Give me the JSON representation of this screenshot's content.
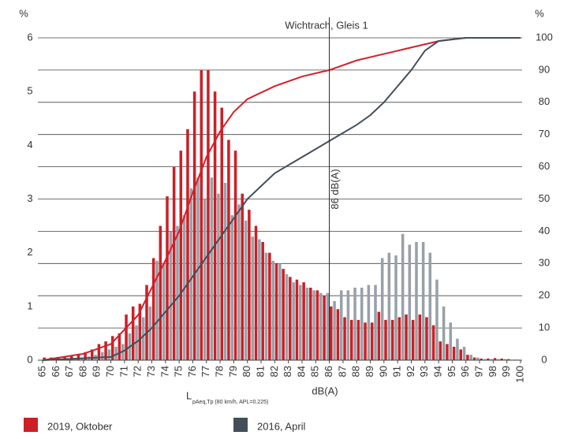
{
  "chart_data": {
    "type": "histogram",
    "title": "Wichtrach, Gleis 1",
    "y_label": "%",
    "y2_label": "%",
    "x_label": "dB(A)",
    "x_sub_label": "L",
    "x_sub_label_sub": "pAeq,Tp (80 km/h, APL=0.225)",
    "annotation": {
      "x": 86,
      "label": "86 dB(A)"
    },
    "bins": [
      65,
      65.5,
      66,
      66.5,
      67,
      67.5,
      68,
      68.5,
      69,
      69.5,
      70,
      70.5,
      71,
      71.5,
      72,
      72.5,
      73,
      73.5,
      74,
      74.5,
      75,
      75.5,
      76,
      76.5,
      77,
      77.5,
      78,
      78.5,
      79,
      79.5,
      80,
      80.5,
      81,
      81.5,
      82,
      82.5,
      83,
      83.5,
      84,
      84.5,
      85,
      85.5,
      86,
      86.5,
      87,
      87.5,
      88,
      88.5,
      89,
      89.5,
      90,
      90.5,
      91,
      91.5,
      92,
      92.5,
      93,
      93.5,
      94,
      94.5,
      95,
      95.5,
      96,
      96.5,
      97,
      97.5,
      98,
      98.5,
      99,
      99.5,
      100
    ],
    "xlim": [
      65,
      100
    ],
    "xticks": [
      65,
      66,
      67,
      68,
      69,
      70,
      71,
      72,
      73,
      74,
      75,
      76,
      77,
      78,
      79,
      80,
      81,
      82,
      83,
      84,
      85,
      86,
      87,
      88,
      89,
      90,
      91,
      92,
      93,
      94,
      95,
      96,
      97,
      98,
      99,
      100
    ],
    "ylim": [
      0,
      6
    ],
    "yticks": [
      0,
      1,
      2,
      3,
      4,
      5,
      6
    ],
    "y2lim": [
      0,
      100
    ],
    "y2ticks": [
      0,
      10,
      20,
      30,
      40,
      50,
      60,
      70,
      80,
      90,
      100
    ],
    "grid": true,
    "series": [
      {
        "name": "2019, Oktober",
        "color": "#cc1f26",
        "line_color": "#d4202a",
        "values": [
          0.05,
          0.05,
          0.06,
          0.07,
          0.08,
          0.1,
          0.15,
          0.2,
          0.3,
          0.35,
          0.45,
          0.5,
          0.85,
          1.0,
          1.05,
          1.4,
          1.9,
          2.5,
          3.05,
          3.6,
          3.9,
          4.3,
          5.0,
          5.4,
          5.4,
          5.0,
          4.7,
          4.1,
          3.9,
          3.1,
          2.8,
          2.5,
          2.2,
          2.0,
          1.8,
          1.7,
          1.55,
          1.5,
          1.45,
          1.35,
          1.3,
          1.2,
          1.0,
          0.95,
          0.8,
          0.75,
          0.75,
          0.7,
          0.7,
          0.9,
          0.75,
          0.75,
          0.8,
          0.85,
          0.75,
          0.85,
          0.8,
          0.65,
          0.35,
          0.3,
          0.25,
          0.2,
          0.1,
          0.05,
          0.03,
          0.03,
          0.04,
          0.03,
          0.02,
          0.01
        ],
        "cumulative": {
          "x": [
            65,
            68,
            70,
            72,
            74,
            75,
            76,
            77,
            78,
            79,
            80,
            82,
            84,
            86,
            88,
            90,
            92,
            94,
            95,
            96,
            100
          ],
          "values": [
            0,
            2,
            5,
            14,
            31,
            40,
            52,
            63,
            71,
            77,
            81,
            85,
            88,
            90,
            93,
            95,
            97,
            99,
            99.5,
            100,
            100
          ]
        }
      },
      {
        "name": "2016, April",
        "color": "#98a0a8",
        "line_color": "#434e59",
        "values": [
          0.02,
          0.02,
          0.03,
          0.03,
          0.04,
          0.05,
          0.07,
          0.1,
          0.15,
          0.2,
          0.25,
          0.3,
          0.5,
          0.65,
          0.8,
          1.0,
          1.85,
          1.8,
          2.4,
          2.5,
          2.7,
          3.2,
          3.4,
          3.0,
          3.4,
          3.1,
          3.3,
          2.7,
          2.9,
          2.6,
          2.3,
          2.25,
          2.0,
          1.85,
          1.8,
          1.6,
          1.45,
          1.4,
          1.35,
          1.3,
          1.25,
          1.25,
          1.1,
          1.3,
          1.3,
          1.35,
          1.35,
          1.4,
          1.4,
          1.9,
          2.0,
          1.95,
          2.35,
          2.15,
          2.2,
          2.2,
          2.0,
          1.5,
          1.0,
          0.7,
          0.4,
          0.25,
          0.1,
          0.05,
          0.02,
          0.02,
          0.02,
          0.02,
          0.01,
          0.01
        ],
        "cumulative": {
          "x": [
            65,
            70,
            71,
            72,
            73,
            74,
            75,
            76,
            77,
            78,
            79,
            80,
            81,
            82,
            84,
            86,
            88,
            89,
            90,
            91,
            92,
            93,
            94,
            95,
            96,
            100
          ],
          "values": [
            0,
            1,
            3,
            6,
            10,
            15,
            20,
            26,
            32,
            38,
            44,
            50,
            54,
            58,
            63,
            68,
            73,
            76,
            80,
            85,
            90,
            96,
            99,
            99.5,
            100,
            100
          ]
        }
      }
    ]
  }
}
